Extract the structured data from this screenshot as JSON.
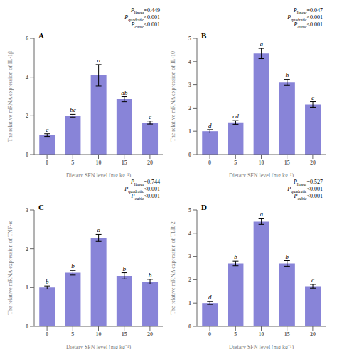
{
  "chart_data": [
    {
      "type": "bar",
      "title": "A",
      "ylabel": "The relative mRNA expression of IL-1β",
      "xlabel": "Dietary SFN level (mg kg⁻¹)",
      "categories": [
        "0",
        "5",
        "10",
        "15",
        "20"
      ],
      "values": [
        1.0,
        2.0,
        4.1,
        2.85,
        1.65
      ],
      "errors": [
        0.07,
        0.07,
        0.55,
        0.13,
        0.08
      ],
      "sig_labels": [
        "c",
        "bc",
        "a",
        "ab",
        "c"
      ],
      "ylim": [
        0,
        6
      ],
      "yticks": [
        0,
        2,
        4,
        6
      ],
      "color": "#8884d8",
      "grid": false,
      "annotations": [
        {
          "base": "P",
          "subscript": "linear",
          "text": "=0.449"
        },
        {
          "base": "P",
          "subscript": "quadratic",
          "text": "<0.001"
        },
        {
          "base": "P",
          "subscript": "cubic",
          "text": "<0.001"
        }
      ]
    },
    {
      "type": "bar",
      "title": "B",
      "ylabel": "The relative mRNA expression of IL-10",
      "xlabel": "Dietary SFN level (mg kg⁻¹)",
      "categories": [
        "0",
        "5",
        "10",
        "15",
        "20"
      ],
      "values": [
        1.0,
        1.38,
        4.35,
        3.1,
        2.15
      ],
      "errors": [
        0.07,
        0.08,
        0.22,
        0.12,
        0.12
      ],
      "sig_labels": [
        "d",
        "cd",
        "a",
        "b",
        "c"
      ],
      "ylim": [
        0,
        5
      ],
      "yticks": [
        0,
        1,
        2,
        3,
        4,
        5
      ],
      "color": "#8884d8",
      "grid": false,
      "annotations": [
        {
          "base": "P",
          "subscript": "linear",
          "text": "=0.047"
        },
        {
          "base": "P",
          "subscript": "quadratic",
          "text": "<0.001"
        },
        {
          "base": "P",
          "subscript": "cubic",
          "text": "<0.001"
        }
      ]
    },
    {
      "type": "bar",
      "title": "C",
      "ylabel": "The relative mRNA expression of TNF-α",
      "xlabel": "Dietary SFN level (mg kg⁻¹)",
      "categories": [
        "0",
        "5",
        "10",
        "15",
        "20"
      ],
      "values": [
        1.0,
        1.38,
        2.28,
        1.3,
        1.15
      ],
      "errors": [
        0.04,
        0.06,
        0.09,
        0.08,
        0.06
      ],
      "sig_labels": [
        "b",
        "b",
        "a",
        "b",
        "b"
      ],
      "ylim": [
        0,
        3
      ],
      "yticks": [
        0,
        1,
        2,
        3
      ],
      "color": "#8884d8",
      "grid": false,
      "annotations": [
        {
          "base": "P",
          "subscript": "linear",
          "text": "=0.744"
        },
        {
          "base": "P",
          "subscript": "quadratic",
          "text": "<0.001"
        },
        {
          "base": "P",
          "subscript": "cubic",
          "text": "<0.001"
        }
      ]
    },
    {
      "type": "bar",
      "title": "D",
      "ylabel": "The relative mRNA expression of TLR-2",
      "xlabel": "Dietary SFN level (mg kg⁻¹)",
      "categories": [
        "0",
        "5",
        "10",
        "15",
        "20"
      ],
      "values": [
        1.0,
        2.7,
        4.5,
        2.7,
        1.72
      ],
      "errors": [
        0.06,
        0.1,
        0.12,
        0.12,
        0.08
      ],
      "sig_labels": [
        "d",
        "b",
        "a",
        "b",
        "c"
      ],
      "ylim": [
        0,
        5
      ],
      "yticks": [
        0,
        1,
        2,
        3,
        4,
        5
      ],
      "color": "#8884d8",
      "grid": false,
      "annotations": [
        {
          "base": "P",
          "subscript": "linear",
          "text": "=0.527"
        },
        {
          "base": "P",
          "subscript": "quadratic",
          "text": "<0.001"
        },
        {
          "base": "P",
          "subscript": "cubic",
          "text": "<0.001"
        }
      ]
    }
  ]
}
